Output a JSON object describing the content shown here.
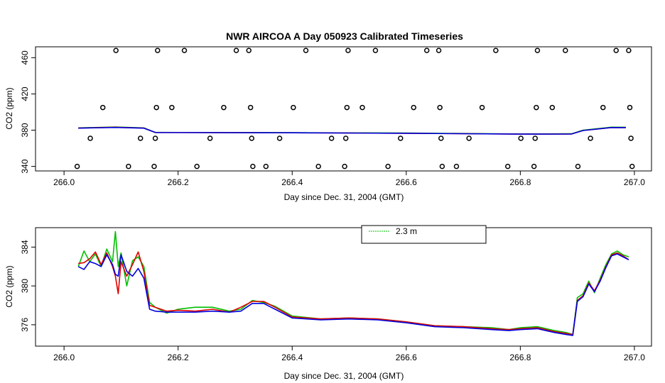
{
  "chart_data": [
    {
      "type": "line",
      "title": "NWR AIRCOA A  Day 050923  Calibrated Timeseries",
      "xlabel": "Day since Dec. 31, 2004 (GMT)",
      "ylabel": "CO2 (ppm)",
      "xlim": [
        265.95,
        267.03
      ],
      "ylim": [
        335,
        472
      ],
      "xticks": [
        266.0,
        266.2,
        266.4,
        266.6,
        266.8,
        267.0
      ],
      "xtick_labels": [
        "266.0",
        "266.2",
        "266.4",
        "266.6",
        "266.8",
        "267.0"
      ],
      "yticks": [
        340,
        380,
        420,
        460
      ],
      "ytick_labels": [
        "340",
        "380",
        "420",
        "460"
      ],
      "markers": [
        {
          "x": 266.023,
          "y": 340
        },
        {
          "x": 266.046,
          "y": 371
        },
        {
          "x": 266.068,
          "y": 405
        },
        {
          "x": 266.091,
          "y": 468
        },
        {
          "x": 266.113,
          "y": 340
        },
        {
          "x": 266.134,
          "y": 371
        },
        {
          "x": 266.158,
          "y": 340
        },
        {
          "x": 266.16,
          "y": 371
        },
        {
          "x": 266.162,
          "y": 405
        },
        {
          "x": 266.164,
          "y": 468
        },
        {
          "x": 266.189,
          "y": 405
        },
        {
          "x": 266.211,
          "y": 468
        },
        {
          "x": 266.233,
          "y": 340
        },
        {
          "x": 266.256,
          "y": 371
        },
        {
          "x": 266.28,
          "y": 405
        },
        {
          "x": 266.302,
          "y": 468
        },
        {
          "x": 266.324,
          "y": 468
        },
        {
          "x": 266.327,
          "y": 405
        },
        {
          "x": 266.329,
          "y": 371
        },
        {
          "x": 266.331,
          "y": 340
        },
        {
          "x": 266.354,
          "y": 340
        },
        {
          "x": 266.378,
          "y": 371
        },
        {
          "x": 266.402,
          "y": 405
        },
        {
          "x": 266.424,
          "y": 468
        },
        {
          "x": 266.446,
          "y": 340
        },
        {
          "x": 266.469,
          "y": 371
        },
        {
          "x": 266.492,
          "y": 340
        },
        {
          "x": 266.494,
          "y": 371
        },
        {
          "x": 266.496,
          "y": 405
        },
        {
          "x": 266.498,
          "y": 468
        },
        {
          "x": 266.523,
          "y": 405
        },
        {
          "x": 266.546,
          "y": 468
        },
        {
          "x": 266.568,
          "y": 340
        },
        {
          "x": 266.59,
          "y": 371
        },
        {
          "x": 266.613,
          "y": 405
        },
        {
          "x": 266.636,
          "y": 468
        },
        {
          "x": 266.657,
          "y": 468
        },
        {
          "x": 266.659,
          "y": 405
        },
        {
          "x": 266.661,
          "y": 371
        },
        {
          "x": 266.663,
          "y": 340
        },
        {
          "x": 266.688,
          "y": 340
        },
        {
          "x": 266.71,
          "y": 371
        },
        {
          "x": 266.733,
          "y": 405
        },
        {
          "x": 266.757,
          "y": 468
        },
        {
          "x": 266.778,
          "y": 340
        },
        {
          "x": 266.801,
          "y": 371
        },
        {
          "x": 266.824,
          "y": 340
        },
        {
          "x": 266.826,
          "y": 371
        },
        {
          "x": 266.828,
          "y": 405
        },
        {
          "x": 266.83,
          "y": 468
        },
        {
          "x": 266.856,
          "y": 405
        },
        {
          "x": 266.879,
          "y": 468
        },
        {
          "x": 266.901,
          "y": 340
        },
        {
          "x": 266.923,
          "y": 371
        },
        {
          "x": 266.945,
          "y": 405
        },
        {
          "x": 266.968,
          "y": 468
        },
        {
          "x": 266.99,
          "y": 468
        },
        {
          "x": 266.992,
          "y": 405
        },
        {
          "x": 266.994,
          "y": 371
        },
        {
          "x": 266.996,
          "y": 340
        }
      ],
      "series": [
        {
          "name": "green",
          "color": "#00c000",
          "x": [
            266.025,
            266.09,
            266.14,
            266.16,
            266.4,
            266.6,
            266.8,
            266.89,
            266.91,
            266.96,
            266.985
          ],
          "values": [
            382.5,
            383.5,
            382.5,
            377.5,
            377.3,
            376.8,
            375.8,
            376,
            380,
            383.3,
            383.2
          ]
        },
        {
          "name": "red",
          "color": "#e00000",
          "x": [
            266.025,
            266.09,
            266.14,
            266.16,
            266.4,
            266.6,
            266.8,
            266.89,
            266.91,
            266.96,
            266.985
          ],
          "values": [
            382.3,
            383.2,
            382.3,
            377.4,
            377.1,
            376.6,
            375.6,
            375.8,
            379.6,
            382.9,
            382.8
          ]
        },
        {
          "name": "blue",
          "color": "#0000e0",
          "x": [
            266.025,
            266.09,
            266.14,
            266.16,
            266.4,
            266.6,
            266.8,
            266.89,
            266.91,
            266.96,
            266.985
          ],
          "values": [
            382.2,
            383.0,
            382.2,
            377.4,
            377.1,
            376.6,
            375.6,
            375.8,
            379.6,
            382.9,
            382.8
          ]
        }
      ]
    },
    {
      "type": "line",
      "title": "",
      "xlabel": "Day since Dec. 31, 2004 (GMT)",
      "ylabel": "CO2 (ppm)",
      "xlim": [
        265.95,
        267.03
      ],
      "ylim": [
        373.8,
        386.0
      ],
      "xticks": [
        266.0,
        266.2,
        266.4,
        266.6,
        266.8,
        267.0
      ],
      "xtick_labels": [
        "266.0",
        "266.2",
        "266.4",
        "266.6",
        "266.8",
        "267.0"
      ],
      "yticks": [
        376,
        380,
        384
      ],
      "ytick_labels": [
        "376",
        "380",
        "384"
      ],
      "legend": {
        "position": "top-center",
        "entries": [
          {
            "label": "2.3 m",
            "color": "#00c000"
          }
        ]
      },
      "series": [
        {
          "name": "2.3 m",
          "color": "#00c000",
          "x": [
            266.025,
            266.035,
            266.045,
            266.055,
            266.065,
            266.075,
            266.085,
            266.09,
            266.095,
            266.1,
            266.11,
            266.12,
            266.13,
            266.14,
            266.15,
            266.16,
            266.18,
            266.2,
            266.23,
            266.26,
            266.29,
            266.31,
            266.33,
            266.35,
            266.37,
            266.4,
            266.45,
            266.5,
            266.55,
            266.6,
            266.65,
            266.7,
            266.75,
            266.78,
            266.8,
            266.83,
            266.86,
            266.88,
            266.892,
            266.9,
            266.91,
            266.92,
            266.93,
            266.94,
            266.95,
            266.96,
            266.97,
            266.98,
            266.99
          ],
          "values": [
            382.0,
            383.6,
            382.5,
            383.3,
            382.0,
            383.8,
            382.5,
            385.6,
            382.0,
            383.4,
            380.0,
            382.6,
            383.0,
            382.0,
            378.3,
            377.8,
            377.2,
            377.6,
            377.8,
            377.8,
            377.4,
            377.6,
            378.5,
            378.3,
            377.9,
            376.9,
            376.6,
            376.7,
            376.6,
            376.3,
            375.9,
            375.8,
            375.7,
            375.5,
            375.7,
            375.8,
            375.4,
            375.2,
            375.0,
            378.8,
            379.2,
            380.5,
            379.3,
            380.8,
            382.2,
            383.3,
            383.6,
            383.2,
            383.0
          ]
        },
        {
          "name": "red",
          "color": "#e00000",
          "x": [
            266.025,
            266.035,
            266.045,
            266.055,
            266.065,
            266.075,
            266.085,
            266.09,
            266.095,
            266.1,
            266.11,
            266.12,
            266.13,
            266.14,
            266.15,
            266.16,
            266.18,
            266.2,
            266.23,
            266.26,
            266.29,
            266.31,
            266.33,
            266.35,
            266.37,
            266.4,
            266.45,
            266.5,
            266.55,
            266.6,
            266.65,
            266.7,
            266.75,
            266.78,
            266.8,
            266.83,
            266.86,
            266.88,
            266.892,
            266.9,
            266.91,
            266.92,
            266.93,
            266.94,
            266.95,
            266.96,
            266.97,
            266.98,
            266.99
          ],
          "values": [
            382.3,
            382.4,
            382.8,
            383.5,
            382.2,
            383.4,
            382.0,
            381.0,
            379.2,
            382.5,
            381.0,
            382.2,
            383.5,
            381.5,
            378.0,
            377.8,
            377.4,
            377.5,
            377.4,
            377.6,
            377.3,
            377.8,
            378.4,
            378.4,
            377.8,
            376.8,
            376.6,
            376.7,
            376.6,
            376.3,
            375.9,
            375.8,
            375.6,
            375.5,
            375.6,
            375.7,
            375.3,
            375.1,
            375.0,
            378.5,
            379.0,
            380.3,
            379.5,
            380.6,
            382.0,
            383.2,
            383.4,
            383.1,
            382.7
          ]
        },
        {
          "name": "blue",
          "color": "#0000e0",
          "x": [
            266.025,
            266.035,
            266.045,
            266.055,
            266.065,
            266.075,
            266.085,
            266.09,
            266.095,
            266.1,
            266.11,
            266.12,
            266.13,
            266.14,
            266.15,
            266.16,
            266.18,
            266.2,
            266.23,
            266.26,
            266.29,
            266.31,
            266.33,
            266.35,
            266.37,
            266.4,
            266.45,
            266.5,
            266.55,
            266.6,
            266.65,
            266.7,
            266.75,
            266.78,
            266.8,
            266.83,
            266.86,
            266.88,
            266.892,
            266.9,
            266.91,
            266.92,
            266.93,
            266.94,
            266.95,
            266.96,
            266.97,
            266.98,
            266.99
          ],
          "values": [
            382.0,
            381.7,
            382.5,
            382.3,
            382.0,
            383.2,
            382.2,
            381.2,
            381.0,
            383.2,
            381.5,
            381.0,
            381.8,
            380.8,
            377.6,
            377.4,
            377.3,
            377.3,
            377.3,
            377.4,
            377.3,
            377.4,
            378.2,
            378.2,
            377.6,
            376.7,
            376.5,
            376.6,
            376.5,
            376.2,
            375.8,
            375.7,
            375.5,
            375.4,
            375.5,
            375.6,
            375.2,
            375.0,
            374.9,
            378.4,
            378.9,
            380.2,
            379.4,
            380.5,
            381.9,
            383.1,
            383.3,
            383.0,
            382.7
          ]
        }
      ]
    }
  ]
}
